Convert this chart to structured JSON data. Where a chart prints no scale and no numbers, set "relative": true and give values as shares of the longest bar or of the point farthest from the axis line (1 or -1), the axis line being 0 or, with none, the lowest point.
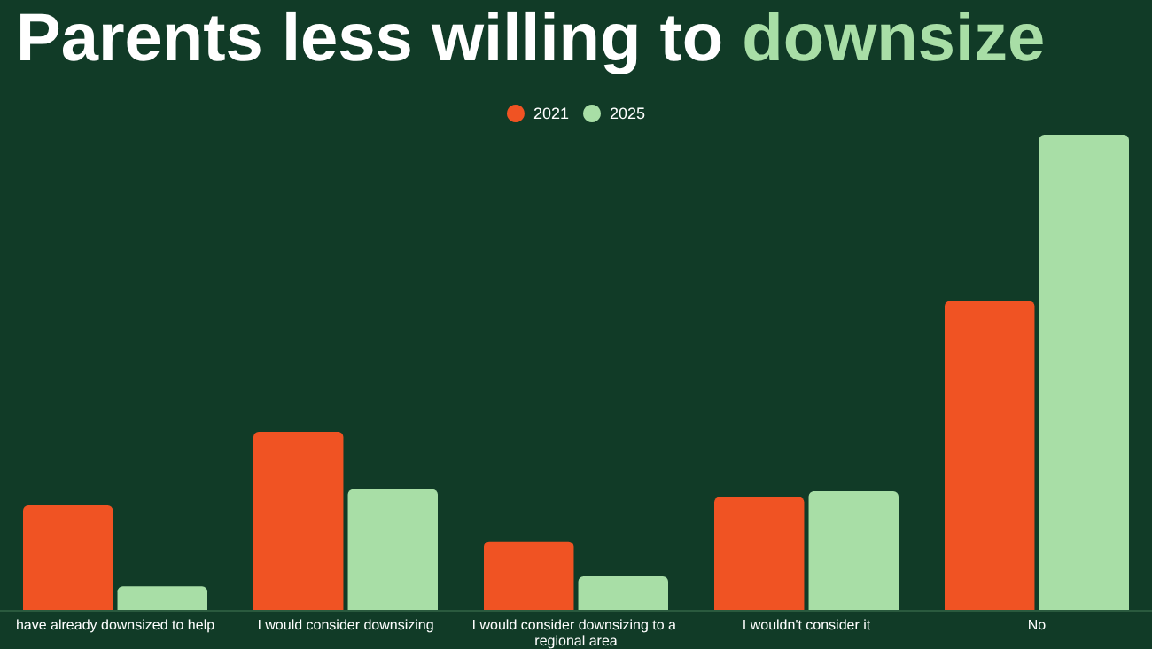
{
  "chart_data": {
    "type": "bar",
    "title": "Parents less willing to downsize",
    "relative": true,
    "categories": [
      "have already downsized to help",
      "I would consider downsizing",
      "I would consider downsizing to a regional area",
      "I wouldn't consider it",
      "No"
    ],
    "series": [
      {
        "name": "2021",
        "color": "#f05323",
        "values": [
          0.22,
          0.375,
          0.144,
          0.238,
          0.65
        ]
      },
      {
        "name": "2025",
        "color": "#a8dea6",
        "values": [
          0.05,
          0.254,
          0.071,
          0.25,
          1
        ]
      }
    ],
    "legend": "top"
  }
}
